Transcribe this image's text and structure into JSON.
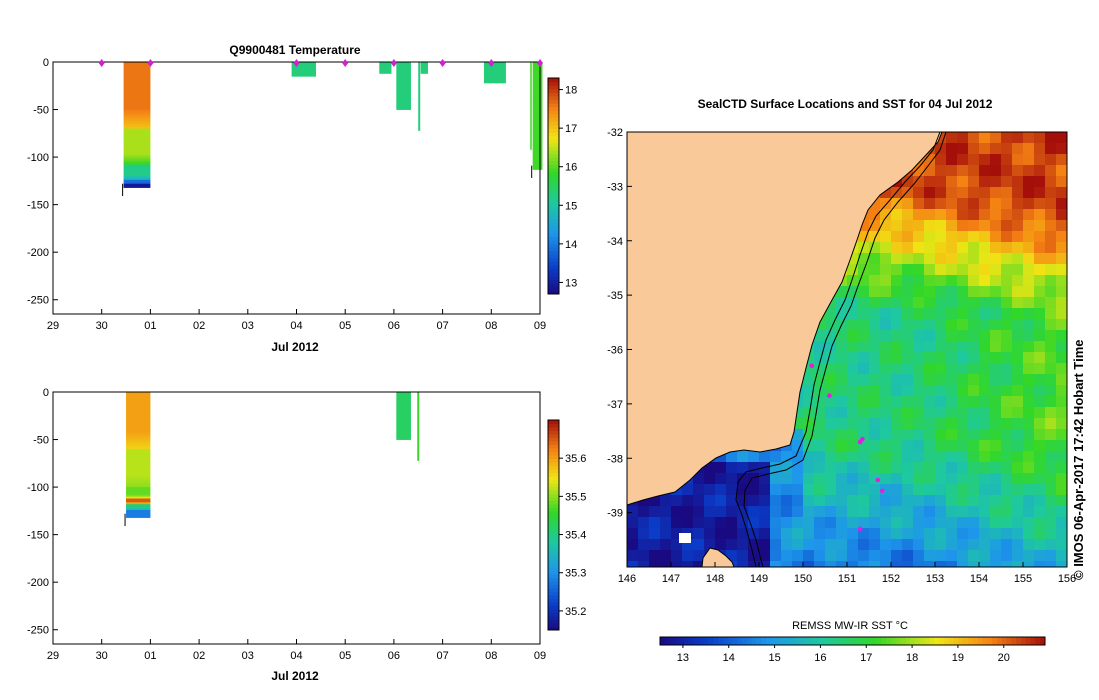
{
  "chart_data": [
    {
      "type": "heatmap",
      "title": "Q9900481  Temperature",
      "xlabel": "Jul 2012",
      "ylabel": "",
      "xticks": [
        "29",
        "30",
        "01",
        "02",
        "03",
        "04",
        "05",
        "06",
        "07",
        "08",
        "09"
      ],
      "xlim": [
        29,
        39
      ],
      "yticks": [
        "0",
        "-50",
        "-100",
        "-150",
        "-200",
        "-250"
      ],
      "ylim": [
        -265,
        0
      ],
      "colorbar": {
        "label": "",
        "ticks": [
          "13",
          "14",
          "15",
          "16",
          "17",
          "18"
        ],
        "range": [
          12.7,
          18.3
        ]
      },
      "profile_markers_day": [
        30.0,
        31.0,
        34.0,
        35.0,
        36.0,
        37.0,
        38.0,
        39.0
      ],
      "profiles": [
        {
          "t0": 30.45,
          "t1": 31.0,
          "depth": 132,
          "layers": [
            [
              0,
              70,
              17.6
            ],
            [
              70,
              108,
              16.4
            ],
            [
              108,
              124,
              15.2
            ],
            [
              124,
              128,
              13.9
            ],
            [
              128,
              132,
              12.9
            ]
          ]
        },
        {
          "t0": 33.9,
          "t1": 34.4,
          "depth": 15,
          "layers": [
            [
              0,
              15,
              15.3
            ]
          ]
        },
        {
          "t0": 35.7,
          "t1": 35.95,
          "depth": 12,
          "layers": [
            [
              0,
              12,
              15.3
            ]
          ]
        },
        {
          "t0": 36.05,
          "t1": 36.35,
          "depth": 50,
          "layers": [
            [
              0,
              50,
              15.3
            ]
          ]
        },
        {
          "t0": 36.5,
          "t1": 36.54,
          "depth": 72,
          "layers": [
            [
              0,
              72,
              15.3
            ]
          ]
        },
        {
          "t0": 36.55,
          "t1": 36.7,
          "depth": 12,
          "layers": [
            [
              0,
              12,
              15.3
            ]
          ]
        },
        {
          "t0": 37.85,
          "t1": 38.3,
          "depth": 22,
          "layers": [
            [
              0,
              22,
              15.3
            ]
          ]
        },
        {
          "t0": 38.8,
          "t1": 38.83,
          "depth": 92,
          "layers": [
            [
              0,
              92,
              15.9
            ]
          ]
        },
        {
          "t0": 38.85,
          "t1": 39.05,
          "depth": 113,
          "layers": [
            [
              0,
              113,
              15.9
            ]
          ]
        }
      ]
    },
    {
      "type": "heatmap",
      "title": "",
      "xlabel": "Jul 2012",
      "ylabel": "",
      "xticks": [
        "29",
        "30",
        "01",
        "02",
        "03",
        "04",
        "05",
        "06",
        "07",
        "08",
        "09"
      ],
      "xlim": [
        29,
        39
      ],
      "yticks": [
        "0",
        "-50",
        "-100",
        "-150",
        "-200",
        "-250"
      ],
      "ylim": [
        -265,
        0
      ],
      "colorbar": {
        "label": "",
        "ticks": [
          "35.2",
          "35.3",
          "35.4",
          "35.5",
          "35.6"
        ],
        "range": [
          35.15,
          35.7
        ]
      },
      "profiles": [
        {
          "t0": 30.5,
          "t1": 31.0,
          "depth": 132,
          "layers": [
            [
              0,
              60,
              35.6
            ],
            [
              60,
              100,
              35.52
            ],
            [
              100,
              112,
              35.48
            ],
            [
              112,
              118,
              35.65
            ],
            [
              118,
              124,
              35.4
            ],
            [
              124,
              132,
              35.28
            ]
          ]
        },
        {
          "t0": 36.05,
          "t1": 36.35,
          "depth": 50,
          "layers": [
            [
              0,
              50,
              35.42
            ]
          ]
        },
        {
          "t0": 36.48,
          "t1": 36.52,
          "depth": 72,
          "layers": [
            [
              0,
              72,
              35.46
            ]
          ]
        }
      ]
    },
    {
      "type": "map",
      "title": "SealCTD Surface Locations and SST for 04 Jul 2012",
      "xlabel": "",
      "ylabel": "",
      "xticks": [
        "146",
        "147",
        "148",
        "149",
        "150",
        "151",
        "152",
        "153",
        "154",
        "155",
        "156"
      ],
      "xlim": [
        146,
        156
      ],
      "yticks": [
        "-32",
        "-33",
        "-34",
        "-35",
        "-36",
        "-37",
        "-38",
        "-39"
      ],
      "ylim": [
        -40,
        -32
      ],
      "colorbar": {
        "label": "REMSS MW-IR SST °C",
        "ticks": [
          "13",
          "14",
          "15",
          "16",
          "17",
          "18",
          "19",
          "20"
        ],
        "range": [
          12.5,
          20.9
        ]
      },
      "locations": [
        [
          150.2,
          -36.3
        ],
        [
          150.6,
          -36.85
        ],
        [
          151.3,
          -37.7
        ],
        [
          151.35,
          -37.65
        ],
        [
          151.7,
          -38.4
        ],
        [
          151.8,
          -38.6
        ],
        [
          151.3,
          -39.3
        ]
      ]
    }
  ],
  "credit": "© IMOS 06-Apr-2017 17:42 Hobart Time"
}
